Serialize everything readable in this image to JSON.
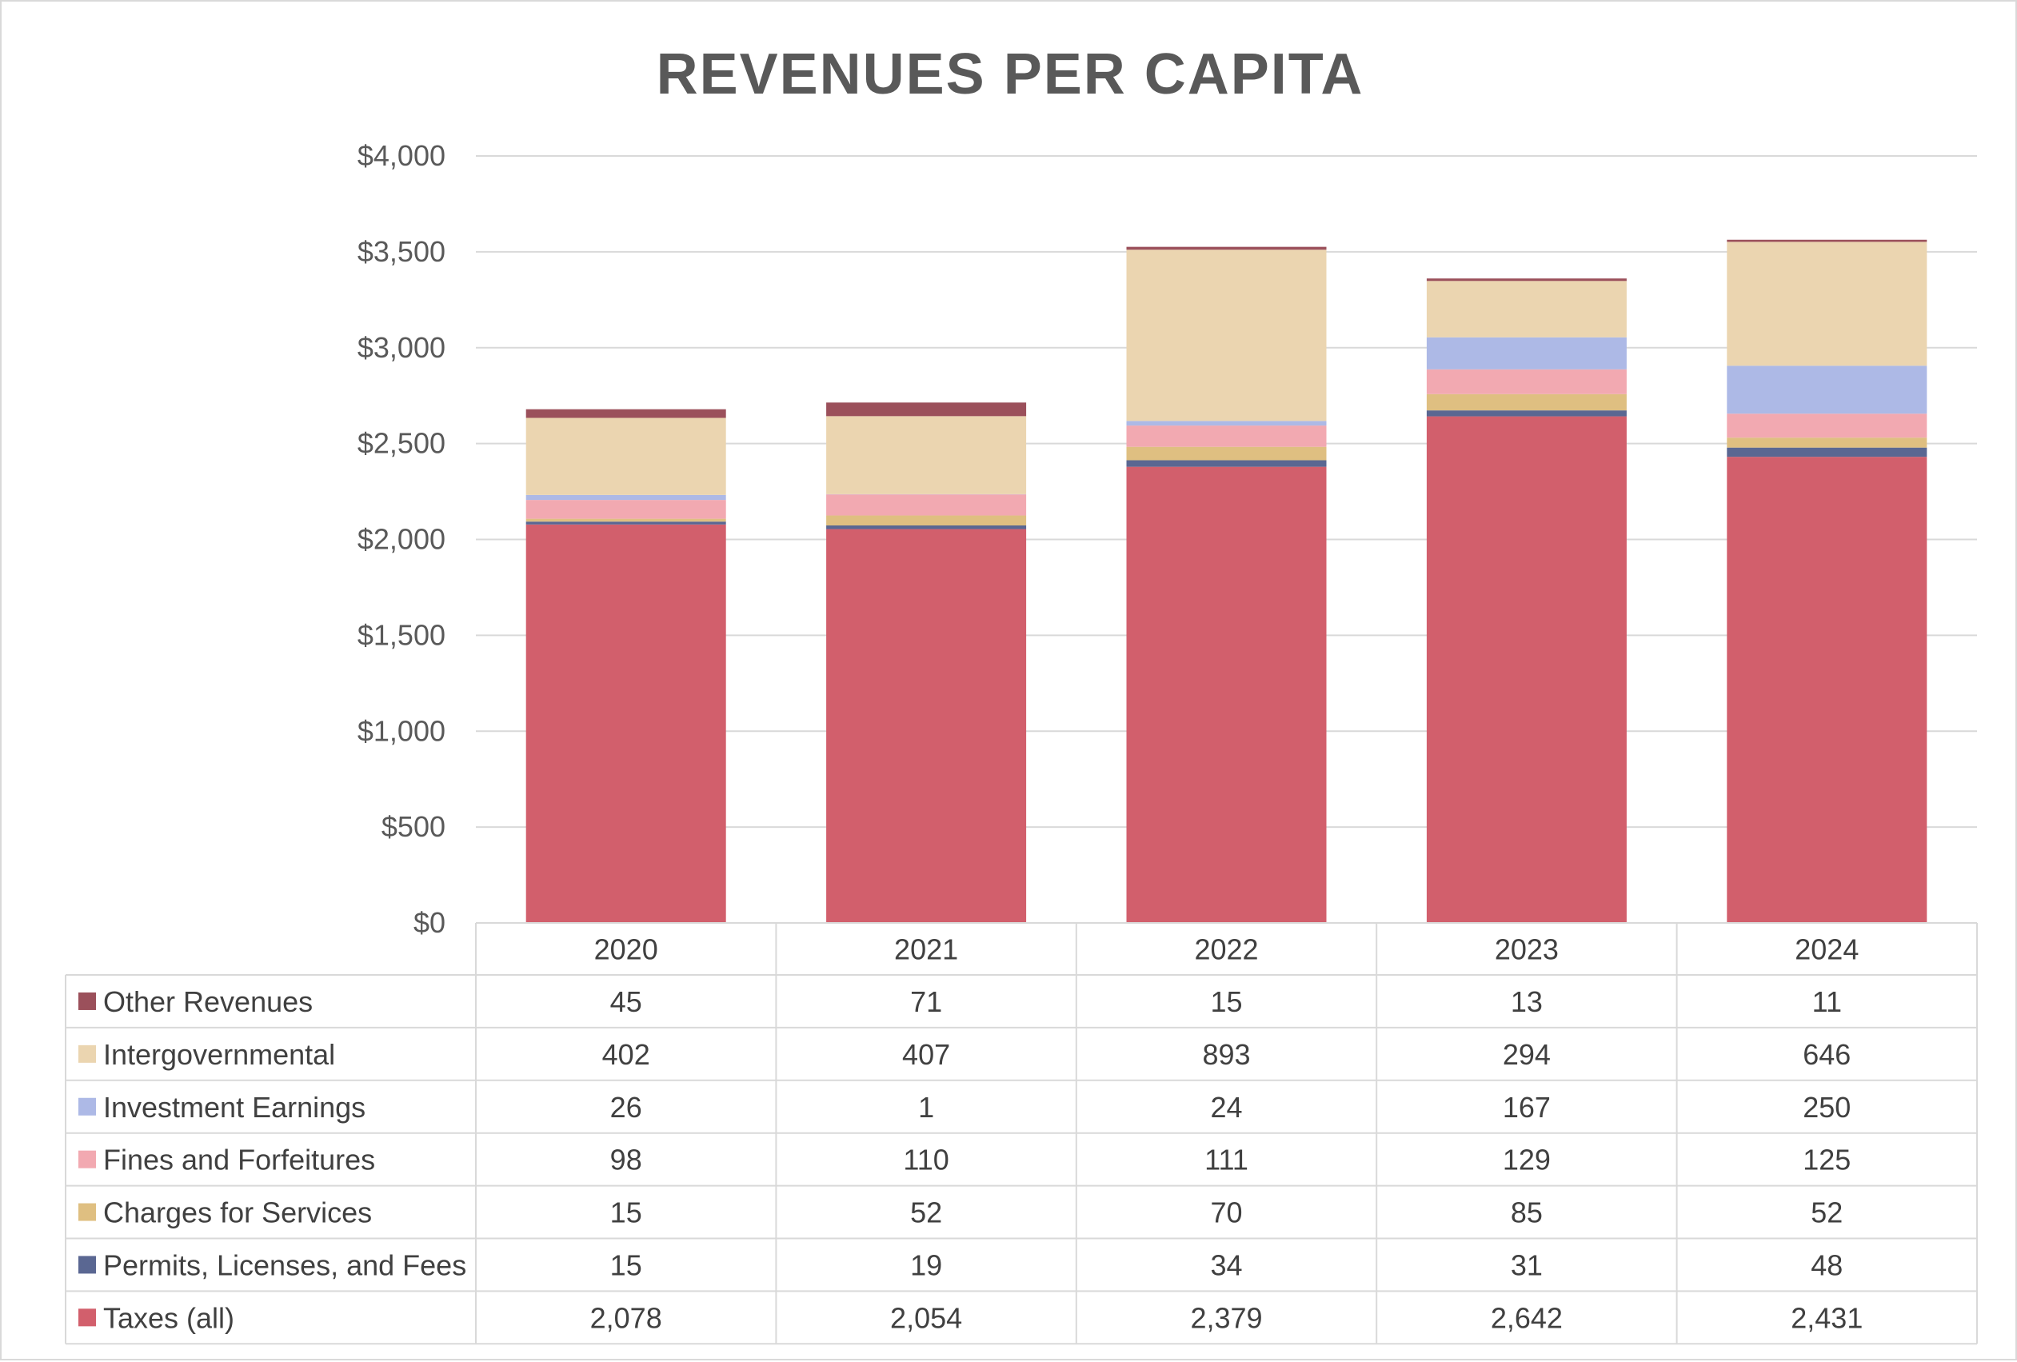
{
  "chart_data": {
    "type": "bar",
    "stacked": true,
    "title": "REVENUES PER CAPITA",
    "xlabel": "",
    "ylabel": "",
    "ylim": [
      0,
      4000
    ],
    "yticks": [
      0,
      500,
      1000,
      1500,
      2000,
      2500,
      3000,
      3500,
      4000
    ],
    "ytick_labels": [
      "$0",
      "$500",
      "$1,000",
      "$1,500",
      "$2,000",
      "$2,500",
      "$3,000",
      "$3,500",
      "$4,000"
    ],
    "grid": true,
    "legend": "data-table",
    "categories": [
      "2020",
      "2021",
      "2022",
      "2023",
      "2024"
    ],
    "series": [
      {
        "name": "Taxes (all)",
        "color": "#d25f6c",
        "values": [
          2078,
          2054,
          2379,
          2642,
          2431
        ],
        "labels": [
          "2,078",
          "2,054",
          "2,379",
          "2,642",
          "2,431"
        ]
      },
      {
        "name": "Permits, Licenses, and Fees",
        "color": "#5a6792",
        "values": [
          15,
          19,
          34,
          31,
          48
        ],
        "labels": [
          "15",
          "19",
          "34",
          "31",
          "48"
        ]
      },
      {
        "name": "Charges for Services",
        "color": "#dfbf81",
        "values": [
          15,
          52,
          70,
          85,
          52
        ],
        "labels": [
          "15",
          "52",
          "70",
          "85",
          "52"
        ]
      },
      {
        "name": "Fines and Forfeitures",
        "color": "#f2a9b1",
        "values": [
          98,
          110,
          111,
          129,
          125
        ],
        "labels": [
          "98",
          "110",
          "111",
          "129",
          "125"
        ]
      },
      {
        "name": "Investment Earnings",
        "color": "#adb9e6",
        "values": [
          26,
          1,
          24,
          167,
          250
        ],
        "labels": [
          "26",
          "1",
          "24",
          "167",
          "250"
        ]
      },
      {
        "name": "Intergovernmental",
        "color": "#ebd5b0",
        "values": [
          402,
          407,
          893,
          294,
          646
        ],
        "labels": [
          "402",
          "407",
          "893",
          "294",
          "646"
        ]
      },
      {
        "name": "Other Revenues",
        "color": "#9b505b",
        "values": [
          45,
          71,
          15,
          13,
          11
        ],
        "labels": [
          "45",
          "71",
          "15",
          "13",
          "11"
        ]
      }
    ]
  }
}
